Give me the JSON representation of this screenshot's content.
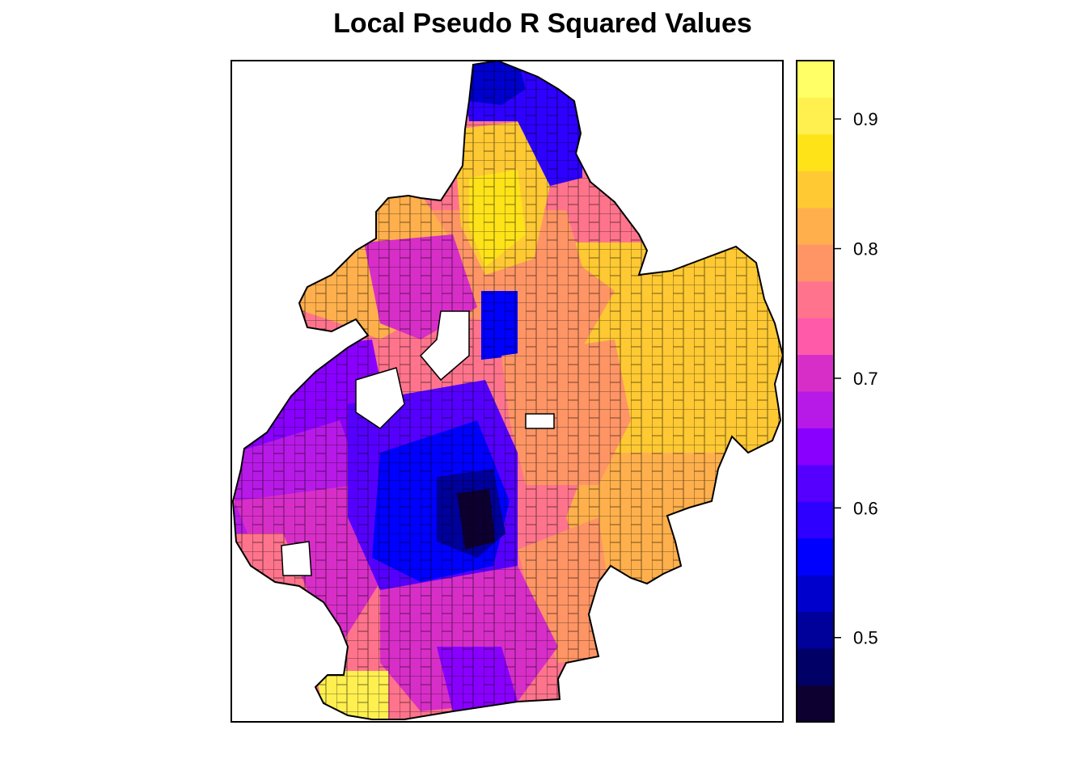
{
  "title": "Local Pseudo R Squared Values",
  "legend": {
    "ticks": [
      "0.5",
      "0.6",
      "0.7",
      "0.8",
      "0.9"
    ],
    "tick_values": [
      0.5,
      0.6,
      0.7,
      0.8,
      0.9
    ],
    "range": [
      0.435,
      0.945
    ],
    "colors": [
      "#0D0030",
      "#000066",
      "#00009A",
      "#0000CD",
      "#0000FF",
      "#2D00FF",
      "#5500FF",
      "#8A00FF",
      "#B71AE6",
      "#D82EC8",
      "#FF5AAA",
      "#FF748C",
      "#FF9565",
      "#FFB04C",
      "#FFC933",
      "#FFE319",
      "#FFF050",
      "#FFFF66"
    ]
  },
  "chart_data": {
    "type": "map",
    "title": "Local Pseudo R Squared Values",
    "color_scale": "plasma-like (black-blue-purple-pink-orange-yellow)",
    "legend_placement": "right",
    "value_range": [
      0.435,
      0.945
    ],
    "legend_ticks": [
      0.5,
      0.6,
      0.7,
      0.8,
      0.9
    ],
    "regions": [
      {
        "area": "north",
        "value": 0.6
      },
      {
        "area": "north-center",
        "value": 0.88
      },
      {
        "area": "west-waterfront",
        "value": 0.64
      },
      {
        "area": "east",
        "value": 0.85
      },
      {
        "area": "center",
        "value": 0.78
      },
      {
        "area": "south-center-core",
        "value": 0.46
      },
      {
        "area": "south-center",
        "value": 0.55
      },
      {
        "area": "south",
        "value": 0.74
      },
      {
        "area": "southwest",
        "value": 0.7
      },
      {
        "area": "southeast",
        "value": 0.82
      },
      {
        "area": "south-tip",
        "value": 0.92
      }
    ]
  }
}
